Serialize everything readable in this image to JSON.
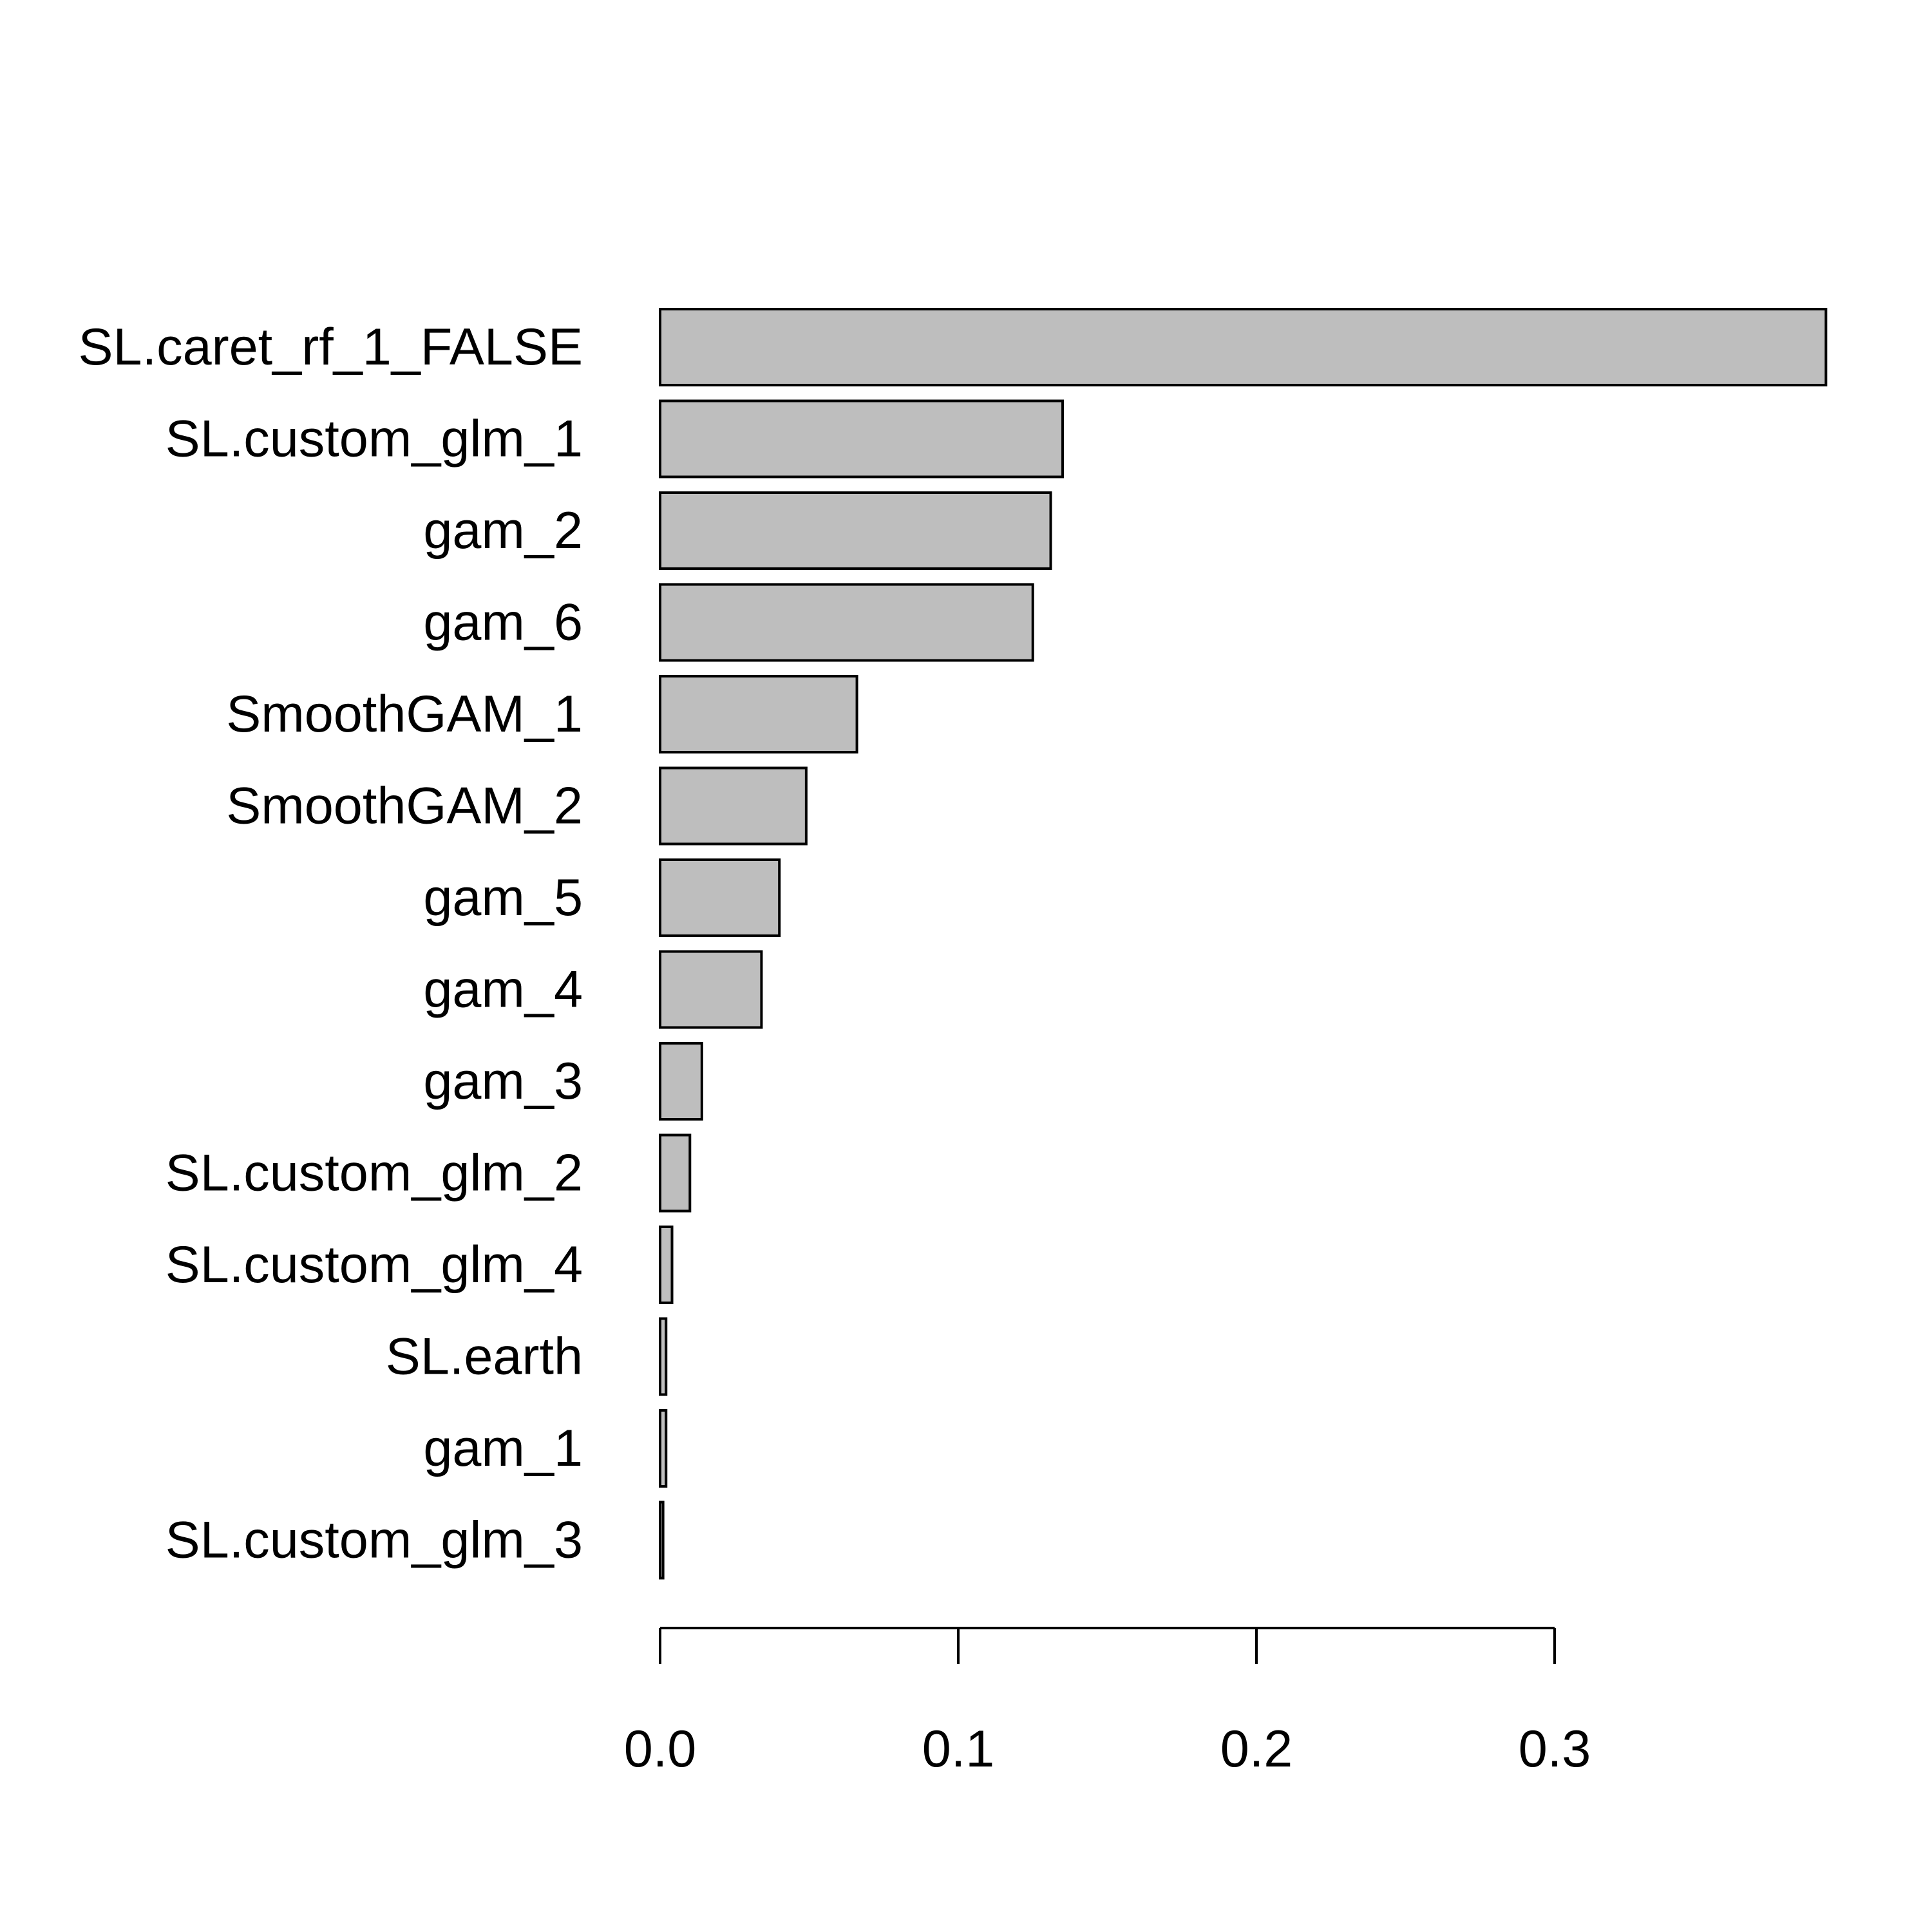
{
  "chart_data": {
    "type": "bar",
    "orientation": "horizontal",
    "title": "",
    "xlabel": "",
    "ylabel": "",
    "categories": [
      "SL.caret_rf_1_FALSE",
      "SL.custom_glm_1",
      "gam_2",
      "gam_6",
      "SmoothGAM_1",
      "SmoothGAM_2",
      "gam_5",
      "gam_4",
      "gam_3",
      "SL.custom_glm_2",
      "SL.custom_glm_4",
      "SL.earth",
      "gam_1",
      "SL.custom_glm_3"
    ],
    "values": [
      0.391,
      0.135,
      0.131,
      0.125,
      0.066,
      0.049,
      0.04,
      0.034,
      0.014,
      0.01,
      0.004,
      0.002,
      0.002,
      0.001
    ],
    "xlim": [
      0,
      0.39
    ],
    "xticks": [
      0.0,
      0.1,
      0.2,
      0.3
    ],
    "xtick_labels": [
      "0.0",
      "0.1",
      "0.2",
      "0.3"
    ],
    "grid": false,
    "legend": "none",
    "colors": {
      "bar_fill": "#bebebe",
      "bar_stroke": "#000000",
      "axis": "#000000",
      "text": "#000000"
    }
  }
}
